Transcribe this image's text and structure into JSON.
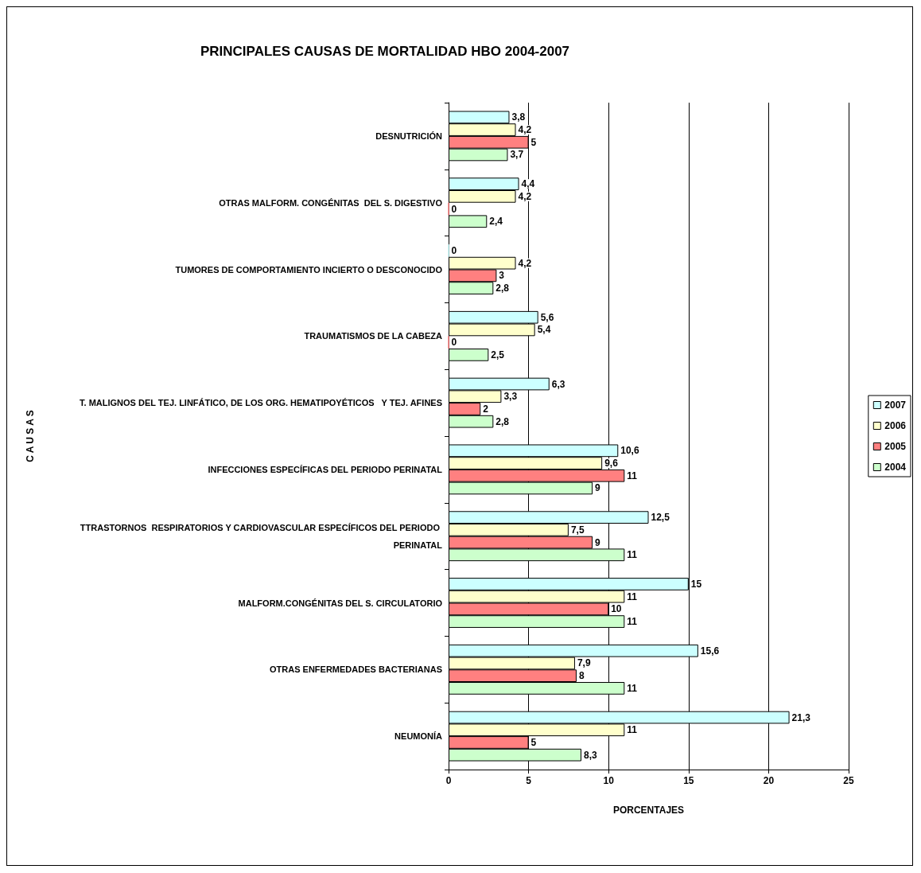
{
  "chart_data": {
    "type": "bar",
    "orientation": "horizontal",
    "title": "PRINCIPALES CAUSAS DE MORTALIDAD HBO 2004-2007",
    "xlabel": "PORCENTAJES",
    "ylabel": "C A U S A S",
    "categories": [
      "DESNUTRICIÓN",
      "OTRAS MALFORM. CONGÉNITAS  DEL S. DIGESTIVO",
      "TUMORES DE COMPORTAMIENTO INCIERTO O DESCONOCIDO",
      "TRAUMATISMOS DE LA CABEZA",
      "T. MALIGNOS DEL TEJ. LINFÁTICO, DE LOS ORG. HEMATIPOYÉTICOS   Y TEJ. AFINES",
      "INFECCIONES ESPECÍFICAS DEL PERIODO PERINATAL",
      "TTRASTORNOS  RESPIRATORIOS Y CARDIOVASCULAR ESPECÍFICOS DEL PERIODO PERINATAL",
      "MALFORM.CONGÉNITAS DEL S. CIRCULATORIO",
      "OTRAS ENFERMEDADES BACTERIANAS",
      "NEUMONÍA"
    ],
    "series": [
      {
        "name": "2007",
        "color": "#ccffff",
        "values": [
          3.8,
          4.4,
          0,
          5.6,
          6.3,
          10.6,
          12.5,
          15,
          15.6,
          21.3
        ],
        "value_labels": [
          "3,8",
          "4,4",
          "0",
          "5,6",
          "6,3",
          "10,6",
          "12,5",
          "15",
          "15,6",
          "21,3"
        ]
      },
      {
        "name": "2006",
        "color": "#ffffcc",
        "values": [
          4.2,
          4.2,
          4.2,
          5.4,
          3.3,
          9.6,
          7.5,
          11,
          7.9,
          11
        ],
        "value_labels": [
          "4,2",
          "4,2",
          "4,2",
          "5,4",
          "3,3",
          "9,6",
          "7,5",
          "11",
          "7,9",
          "11"
        ]
      },
      {
        "name": "2005",
        "color": "#ff8080",
        "values": [
          5,
          0,
          3,
          0,
          2,
          11,
          9,
          10,
          8,
          5
        ],
        "value_labels": [
          "5",
          "0",
          "3",
          "0",
          "2",
          "11",
          "9",
          "10",
          "8",
          "5"
        ]
      },
      {
        "name": "2004",
        "color": "#ccffcc",
        "values": [
          3.7,
          2.4,
          2.8,
          2.5,
          2.8,
          9,
          11,
          11,
          11,
          8.3
        ],
        "value_labels": [
          "3,7",
          "2,4",
          "2,8",
          "2,5",
          "2,8",
          "9",
          "11",
          "11",
          "11",
          "8,3"
        ]
      }
    ],
    "xlim": [
      0,
      25
    ],
    "xticks": [
      0,
      5,
      10,
      15,
      20,
      25
    ],
    "grid": "x",
    "legend": "right"
  }
}
